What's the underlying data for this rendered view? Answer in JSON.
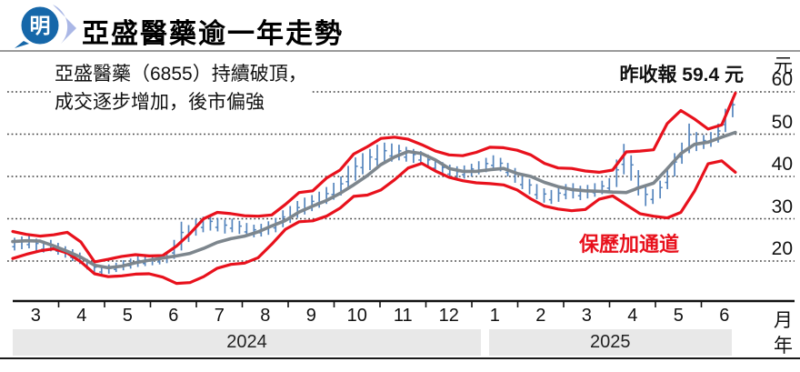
{
  "header": {
    "logo_text": "明",
    "title": "亞盛醫藥逾一年走勢"
  },
  "chart_data": {
    "type": "line",
    "subtype": "bollinger-bands-with-ohlc-candles",
    "title": "亞盛醫藥逾一年走勢",
    "annotation": [
      "亞盛醫藥（6855）持續破頂，",
      "成交逐步增加，後市偏強"
    ],
    "last_close_label": "昨收報 59.4 元",
    "last_close_value": 59.4,
    "stock_code": "6855",
    "bollinger_label": "保歷加通道",
    "y_unit": "元",
    "x_unit_month": "月",
    "x_unit_year": "年",
    "y_ticks": [
      60,
      50,
      40,
      30,
      20
    ],
    "ylim": [
      10.5,
      62
    ],
    "grid": "dotted-horizontal",
    "months": [
      "3",
      "4",
      "5",
      "6",
      "7",
      "8",
      "9",
      "10",
      "11",
      "12",
      "1",
      "2",
      "3",
      "4",
      "5",
      "6"
    ],
    "years": [
      {
        "label": "2024",
        "from": 0,
        "to": 10.2
      },
      {
        "label": "2025",
        "from": 10.37,
        "to": 15.66
      }
    ],
    "colors": {
      "band": "#e8111c",
      "ma": "#7d868d",
      "candle": "#5585bd",
      "grid": "#444444",
      "year_band_bg": "#e8e8e8"
    },
    "series": {
      "x_start": 0,
      "x_step": 0.297,
      "upper": [
        27.0,
        26.3,
        25.9,
        26.2,
        26.8,
        24.5,
        19.8,
        20.4,
        21.1,
        21.5,
        21.2,
        21.3,
        23.5,
        26.5,
        30.0,
        31.5,
        31.2,
        30.7,
        30.6,
        30.9,
        33.4,
        36.2,
        36.6,
        39.6,
        41.5,
        45.3,
        47.0,
        49.0,
        49.3,
        48.8,
        47.5,
        46.0,
        45.1,
        44.9,
        45.7,
        46.9,
        46.8,
        46.2,
        45.1,
        43.1,
        42.0,
        41.9,
        41.3,
        41.0,
        41.5,
        45.8,
        46.0,
        46.3,
        52.5,
        55.6,
        53.6,
        51.2,
        52.2,
        59.7
      ],
      "middle": [
        24.6,
        24.8,
        24.7,
        23.6,
        22.3,
        20.9,
        19.0,
        18.4,
        18.8,
        19.6,
        20.2,
        20.7,
        21.2,
        21.8,
        23.0,
        24.4,
        25.3,
        25.9,
        26.9,
        28.3,
        29.6,
        31.6,
        33.0,
        34.3,
        36.0,
        38.0,
        40.2,
        42.8,
        44.6,
        45.9,
        45.4,
        43.9,
        41.9,
        41.2,
        41.2,
        41.6,
        41.9,
        40.7,
        40.0,
        38.6,
        37.6,
        36.9,
        36.6,
        36.5,
        36.3,
        36.2,
        37.4,
        38.4,
        41.8,
        45.4,
        47.6,
        48.1,
        49.3,
        50.4
      ],
      "lower": [
        20.6,
        21.6,
        22.4,
        22.9,
        21.9,
        19.8,
        17.0,
        16.3,
        16.5,
        16.9,
        17.0,
        16.2,
        14.7,
        14.9,
        16.3,
        18.3,
        19.2,
        19.5,
        20.8,
        24.0,
        27.5,
        29.3,
        29.5,
        30.6,
        32.5,
        35.3,
        35.6,
        36.8,
        39.2,
        42.0,
        43.1,
        41.3,
        39.8,
        39.0,
        38.5,
        38.3,
        38.0,
        36.8,
        34.7,
        33.0,
        32.3,
        31.9,
        32.2,
        34.6,
        35.4,
        33.3,
        31.2,
        30.6,
        30.2,
        31.5,
        36.5,
        43.0,
        43.7,
        41.0
      ]
    },
    "candles": {
      "x_start": 0.04,
      "x_step": 0.158,
      "ranges": [
        [
          22.5,
          25.5
        ],
        [
          22.8,
          25.8
        ],
        [
          23.0,
          26.0
        ],
        [
          22.5,
          25.3
        ],
        [
          22.0,
          24.8
        ],
        [
          22.3,
          25.0
        ],
        [
          21.5,
          24.3
        ],
        [
          20.8,
          23.5
        ],
        [
          20.0,
          22.8
        ],
        [
          19.3,
          22.0
        ],
        [
          18.0,
          20.5
        ],
        [
          17.2,
          19.5
        ],
        [
          16.8,
          19.0
        ],
        [
          17.0,
          19.2
        ],
        [
          17.4,
          19.6
        ],
        [
          17.8,
          20.2
        ],
        [
          18.2,
          20.6
        ],
        [
          18.6,
          21.2
        ],
        [
          18.8,
          21.0
        ],
        [
          19.0,
          21.2
        ],
        [
          19.2,
          21.4
        ],
        [
          19.5,
          22.0
        ],
        [
          20.5,
          25.0
        ],
        [
          22.5,
          29.3
        ],
        [
          24.5,
          28.5
        ],
        [
          26.0,
          30.0
        ],
        [
          26.8,
          30.5
        ],
        [
          27.2,
          30.8
        ],
        [
          27.0,
          30.2
        ],
        [
          26.5,
          29.8
        ],
        [
          26.8,
          30.0
        ],
        [
          26.4,
          29.5
        ],
        [
          26.0,
          29.0
        ],
        [
          25.6,
          28.6
        ],
        [
          25.8,
          28.8
        ],
        [
          26.2,
          29.4
        ],
        [
          26.8,
          30.2
        ],
        [
          28.0,
          32.0
        ],
        [
          29.0,
          33.0
        ],
        [
          30.2,
          34.2
        ],
        [
          31.0,
          35.0
        ],
        [
          31.8,
          35.6
        ],
        [
          32.6,
          36.4
        ],
        [
          33.5,
          37.5
        ],
        [
          34.5,
          38.5
        ],
        [
          35.5,
          40.0
        ],
        [
          37.0,
          42.5
        ],
        [
          39.0,
          44.5
        ],
        [
          40.5,
          45.5
        ],
        [
          41.5,
          46.5
        ],
        [
          42.5,
          47.5
        ],
        [
          43.0,
          48.0
        ],
        [
          43.5,
          47.8
        ],
        [
          43.8,
          47.5
        ],
        [
          43.5,
          47.0
        ],
        [
          43.2,
          46.5
        ],
        [
          43.0,
          46.0
        ],
        [
          42.0,
          45.2
        ],
        [
          41.0,
          44.2
        ],
        [
          40.2,
          43.4
        ],
        [
          39.6,
          42.8
        ],
        [
          39.2,
          42.4
        ],
        [
          39.5,
          42.6
        ],
        [
          40.0,
          43.0
        ],
        [
          40.5,
          43.6
        ],
        [
          41.0,
          44.4
        ],
        [
          41.6,
          45.0
        ],
        [
          41.2,
          44.4
        ],
        [
          40.0,
          43.2
        ],
        [
          38.5,
          42.0
        ],
        [
          37.0,
          40.5
        ],
        [
          35.8,
          39.4
        ],
        [
          34.6,
          38.2
        ],
        [
          33.8,
          37.2
        ],
        [
          33.5,
          36.8
        ],
        [
          34.0,
          37.4
        ],
        [
          34.6,
          38.2
        ],
        [
          34.8,
          38.4
        ],
        [
          34.4,
          37.8
        ],
        [
          34.8,
          38.0
        ],
        [
          35.2,
          38.4
        ],
        [
          35.8,
          39.0
        ],
        [
          36.2,
          39.6
        ],
        [
          37.5,
          44.0
        ],
        [
          40.5,
          47.7
        ],
        [
          39.0,
          45.0
        ],
        [
          35.5,
          41.5
        ],
        [
          33.0,
          37.5
        ],
        [
          33.5,
          37.0
        ],
        [
          34.8,
          39.0
        ],
        [
          37.0,
          42.0
        ],
        [
          40.0,
          45.5
        ],
        [
          43.0,
          48.0
        ],
        [
          45.5,
          52.5
        ],
        [
          46.0,
          50.5
        ],
        [
          46.5,
          49.8
        ],
        [
          47.0,
          50.5
        ],
        [
          48.0,
          52.5
        ],
        [
          50.5,
          56.0
        ],
        [
          54.0,
          58.8
        ]
      ]
    }
  }
}
